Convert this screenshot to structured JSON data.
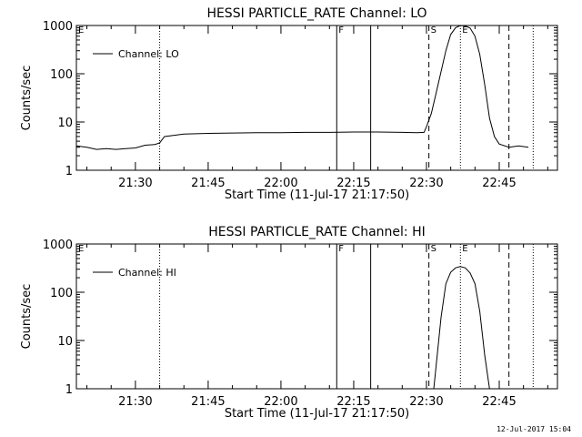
{
  "chart_data": [
    {
      "type": "line",
      "title": "HESSI PARTICLE_RATE Channel: LO",
      "xlabel": "Start Time (11-Jul-17 21:17:50)",
      "ylabel": "Counts/sec",
      "y_scale": "log",
      "ylim": [
        1,
        1000
      ],
      "y_ticks": [
        {
          "value": 1,
          "label": "1"
        },
        {
          "value": 10,
          "label": "10"
        },
        {
          "value": 100,
          "label": "100"
        },
        {
          "value": 1000,
          "label": "1000"
        }
      ],
      "xlim": [
        "21:17:50",
        "22:57:00"
      ],
      "x_ticks": [
        "21:30",
        "21:45",
        "22:00",
        "22:15",
        "22:30",
        "22:45"
      ],
      "grid": false,
      "legend": {
        "position": "top-left",
        "entries": [
          "Channel: LO"
        ]
      },
      "markers": [
        {
          "time": "21:35:00",
          "style": "dotted",
          "label": ""
        },
        {
          "time": "22:30:30",
          "style": "dashed",
          "label": "S"
        },
        {
          "time": "22:47:00",
          "style": "dashed",
          "label": ""
        },
        {
          "time": "22:52:00",
          "style": "dotted",
          "label": ""
        },
        {
          "time": "22:37:00",
          "style": "dotted",
          "label": "E"
        },
        {
          "time": "22:11:30",
          "style": "solid",
          "label": "F"
        },
        {
          "time": "22:18:30",
          "style": "solid",
          "label": ""
        },
        {
          "time": "21:17:50",
          "style": "none",
          "label": "E"
        }
      ],
      "series": [
        {
          "name": "Channel: LO",
          "x": [
            "21:17:50",
            "21:20:00",
            "21:22:00",
            "21:24:00",
            "21:26:00",
            "21:28:00",
            "21:30:00",
            "21:32:00",
            "21:34:00",
            "21:35:00",
            "21:36:00",
            "21:40:00",
            "21:45:00",
            "21:50:00",
            "21:55:00",
            "22:00:00",
            "22:05:00",
            "22:10:00",
            "22:15:00",
            "22:20:00",
            "22:25:00",
            "22:28:00",
            "22:29:30",
            "22:30:00",
            "22:31:00",
            "22:32:00",
            "22:33:00",
            "22:34:00",
            "22:35:00",
            "22:36:00",
            "22:37:00",
            "22:38:00",
            "22:39:00",
            "22:40:00",
            "22:41:00",
            "22:42:00",
            "22:43:00",
            "22:44:00",
            "22:45:00",
            "22:47:00",
            "22:49:00",
            "22:51:00"
          ],
          "y": [
            3.2,
            3.0,
            2.7,
            2.8,
            2.7,
            2.8,
            2.9,
            3.3,
            3.4,
            3.7,
            5.0,
            5.6,
            5.8,
            5.9,
            6.0,
            6.0,
            6.1,
            6.1,
            6.2,
            6.2,
            6.1,
            6.0,
            6.1,
            8,
            15,
            40,
            110,
            300,
            650,
            900,
            1000,
            980,
            880,
            600,
            250,
            60,
            12,
            5,
            3.5,
            3.0,
            3.2,
            3.0
          ]
        }
      ]
    },
    {
      "type": "line",
      "title": "HESSI PARTICLE_RATE Channel: HI",
      "xlabel": "Start Time (11-Jul-17 21:17:50)",
      "ylabel": "Counts/sec",
      "y_scale": "log",
      "ylim": [
        1,
        1000
      ],
      "y_ticks": [
        {
          "value": 1,
          "label": "1"
        },
        {
          "value": 10,
          "label": "10"
        },
        {
          "value": 100,
          "label": "100"
        },
        {
          "value": 1000,
          "label": "1000"
        }
      ],
      "xlim": [
        "21:17:50",
        "22:57:00"
      ],
      "x_ticks": [
        "21:30",
        "21:45",
        "22:00",
        "22:15",
        "22:30",
        "22:45"
      ],
      "grid": false,
      "legend": {
        "position": "top-left",
        "entries": [
          "Channel: HI"
        ]
      },
      "markers": [
        {
          "time": "21:35:00",
          "style": "dotted",
          "label": ""
        },
        {
          "time": "22:30:30",
          "style": "dashed",
          "label": "S"
        },
        {
          "time": "22:47:00",
          "style": "dashed",
          "label": ""
        },
        {
          "time": "22:52:00",
          "style": "dotted",
          "label": ""
        },
        {
          "time": "22:37:00",
          "style": "dotted",
          "label": "E"
        },
        {
          "time": "22:11:30",
          "style": "solid",
          "label": "F"
        },
        {
          "time": "22:18:30",
          "style": "solid",
          "label": ""
        },
        {
          "time": "21:17:50",
          "style": "none",
          "label": "E"
        }
      ],
      "series": [
        {
          "name": "Channel: HI",
          "x": [
            "22:31:30",
            "22:32:00",
            "22:33:00",
            "22:34:00",
            "22:35:00",
            "22:36:00",
            "22:37:00",
            "22:38:00",
            "22:39:00",
            "22:40:00",
            "22:41:00",
            "22:42:00",
            "22:43:00"
          ],
          "y": [
            1,
            3,
            30,
            150,
            260,
            320,
            340,
            320,
            250,
            150,
            40,
            5,
            1
          ]
        }
      ]
    }
  ],
  "timestamp": "12-Jul-2017 15:04"
}
